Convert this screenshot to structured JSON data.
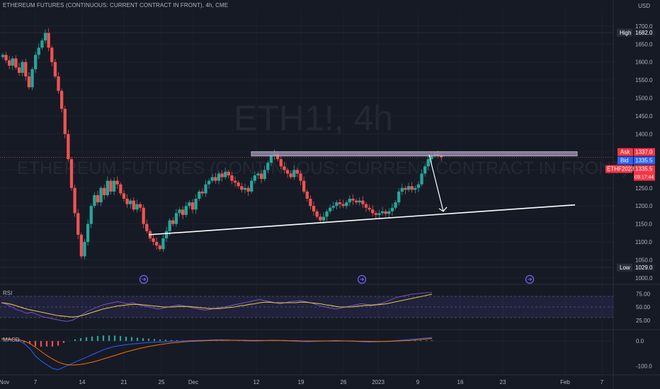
{
  "chart_data": {
    "type": "candlestick",
    "title": "ETHEREUM FUTURES (CONTINUOUS: CURRENT CONTRACT IN FRONT), 4h, CME",
    "watermark_symbol": "ETH1!, 4h",
    "watermark_name": "ETHEREUM FUTURES (CONTINUOUS: CURRENT CONTRACT IN FRONT)",
    "currency": "USD",
    "price_axis": {
      "ylim": [
        990,
        1745
      ],
      "ticks": [
        "1700.0",
        "1650.0",
        "1600.0",
        "1550.0",
        "1500.0",
        "1450.0",
        "1400.0",
        "1350.0",
        "1300.0",
        "1250.0",
        "1200.0",
        "1150.0",
        "1100.0",
        "1050.0",
        "1000.0"
      ],
      "tick_values": [
        1700,
        1650,
        1600,
        1550,
        1500,
        1450,
        1400,
        1350,
        1300,
        1250,
        1200,
        1150,
        1100,
        1050,
        1000
      ]
    },
    "time_axis": {
      "labels": [
        "Nov",
        "7",
        "14",
        "21",
        "25",
        "Dec",
        "12",
        "19",
        "26",
        "2023",
        "9",
        "16",
        "23",
        "Feb",
        "7"
      ]
    },
    "markers": {
      "high": {
        "label": "High",
        "value": "1682.0",
        "v": 1682
      },
      "low": {
        "label": "Low",
        "value": "1029.0",
        "v": 1029
      },
      "ask": {
        "label": "Ask",
        "value": "1337.0",
        "v": 1337
      },
      "bid": {
        "label": "Bid",
        "value": "1335.5",
        "v": 1335.5
      },
      "last": {
        "label": "ETHF2023",
        "value": "1335.5",
        "countdown": "03:17:44",
        "v": 1335.5
      }
    },
    "price_series": [
      1620,
      1605,
      1590,
      1610,
      1585,
      1570,
      1600,
      1560,
      1530,
      1580,
      1620,
      1640,
      1660,
      1682,
      1640,
      1600,
      1560,
      1520,
      1470,
      1400,
      1330,
      1250,
      1180,
      1120,
      1060,
      1100,
      1150,
      1200,
      1230,
      1210,
      1250,
      1230,
      1270,
      1240,
      1270,
      1260,
      1235,
      1220,
      1205,
      1215,
      1190,
      1205,
      1195,
      1150,
      1130,
      1110,
      1100,
      1090,
      1080,
      1110,
      1130,
      1160,
      1150,
      1180,
      1190,
      1175,
      1200,
      1210,
      1190,
      1220,
      1240,
      1235,
      1260,
      1270,
      1280,
      1270,
      1290,
      1280,
      1295,
      1285,
      1270,
      1265,
      1255,
      1245,
      1250,
      1240,
      1270,
      1285,
      1290,
      1275,
      1300,
      1320,
      1340,
      1345,
      1330,
      1310,
      1300,
      1290,
      1280,
      1300,
      1290,
      1270,
      1240,
      1220,
      1200,
      1185,
      1170,
      1160,
      1170,
      1185,
      1195,
      1200,
      1210,
      1205,
      1200,
      1210,
      1220,
      1215,
      1210,
      1215,
      1205,
      1195,
      1190,
      1180,
      1175,
      1180,
      1185,
      1178,
      1185,
      1195,
      1210,
      1240,
      1250,
      1245,
      1255,
      1245,
      1250,
      1260,
      1290,
      1310,
      1330,
      1340,
      1345,
      1340,
      1335
    ],
    "resistance_line": {
      "from_index": 67,
      "to_index": 170,
      "value": 1345
    },
    "support_line": {
      "from_index": 38,
      "to_index": 170,
      "start_value": 1120,
      "end_value": 1203
    },
    "projection_arrow": {
      "from_index": 133,
      "from_value": 1342,
      "to_index": 138,
      "to_value": 1185
    },
    "rsi": {
      "label": "RSI",
      "ticks": [
        "75.00",
        "50.00",
        "25.00"
      ],
      "tick_values": [
        75,
        50,
        25
      ],
      "band": [
        30,
        70
      ],
      "values": [
        58,
        55,
        50,
        45,
        42,
        38,
        40,
        36,
        32,
        30,
        28,
        26,
        24,
        23,
        25,
        30,
        36,
        42,
        46,
        50,
        54,
        56,
        58,
        60,
        58,
        56,
        58,
        54,
        52,
        50,
        48,
        46,
        48,
        50,
        52,
        54,
        52,
        50,
        48,
        46,
        44,
        45,
        47,
        49,
        50,
        52,
        54,
        56,
        58,
        60,
        62,
        64,
        62,
        60,
        58,
        56,
        58,
        60,
        61,
        62,
        60,
        58,
        55,
        52,
        50,
        48,
        46,
        48,
        50,
        52,
        54,
        56,
        55,
        54,
        55,
        57,
        60,
        64,
        68,
        70,
        72,
        74,
        75,
        76,
        77,
        77
      ],
      "avg_values": [
        58,
        57,
        55,
        52,
        49,
        46,
        44,
        42,
        40,
        38,
        36,
        34,
        33,
        32,
        31,
        32,
        34,
        37,
        40,
        43,
        46,
        48,
        50,
        52,
        53,
        54,
        55,
        55,
        54,
        53,
        52,
        51,
        50,
        50,
        50,
        51,
        51,
        51,
        50,
        49,
        48,
        47,
        47,
        47,
        48,
        49,
        50,
        52,
        53,
        55,
        56,
        58,
        59,
        59,
        58,
        58,
        58,
        58,
        58,
        59,
        59,
        58,
        57,
        56,
        54,
        53,
        51,
        50,
        50,
        50,
        51,
        52,
        53,
        53,
        54,
        55,
        56,
        58,
        60,
        62,
        64,
        66,
        68,
        70,
        72,
        74
      ]
    },
    "macd": {
      "label": "MACD",
      "ticks": [
        "0.0",
        "-100.0"
      ],
      "tick_values": [
        0,
        -100
      ],
      "macd_line": [
        10,
        8,
        6,
        2,
        -10,
        -30,
        -60,
        -80,
        -95,
        -110,
        -115,
        -105,
        -95,
        -85,
        -75,
        -65,
        -55,
        -45,
        -35,
        -28,
        -22,
        -18,
        -15,
        -12,
        -10,
        -8,
        -6,
        -5,
        -4,
        -3,
        -2,
        -1,
        0,
        1,
        2,
        3,
        3,
        4,
        5,
        5,
        4,
        3,
        2,
        1,
        0,
        0,
        1,
        2,
        3,
        2,
        1,
        0,
        -1,
        -2,
        -3,
        -2,
        -1,
        0,
        1,
        2,
        1,
        0,
        -1,
        -2,
        -3,
        -4,
        -3,
        -2,
        -1,
        0,
        2,
        4,
        6,
        8,
        10,
        12,
        14
      ],
      "signal_line": [
        8,
        8,
        7,
        5,
        0,
        -10,
        -25,
        -42,
        -58,
        -72,
        -84,
        -92,
        -96,
        -96,
        -94,
        -90,
        -85,
        -79,
        -72,
        -65,
        -58,
        -51,
        -44,
        -38,
        -32,
        -27,
        -22,
        -18,
        -14,
        -11,
        -8,
        -6,
        -4,
        -2,
        -1,
        0,
        1,
        2,
        3,
        3,
        3,
        3,
        3,
        3,
        2,
        2,
        2,
        2,
        2,
        2,
        2,
        1,
        1,
        0,
        0,
        0,
        0,
        0,
        0,
        0,
        0,
        0,
        0,
        -1,
        -1,
        -2,
        -2,
        -2,
        -2,
        -1,
        0,
        1,
        2,
        4,
        6,
        8,
        10
      ]
    }
  }
}
